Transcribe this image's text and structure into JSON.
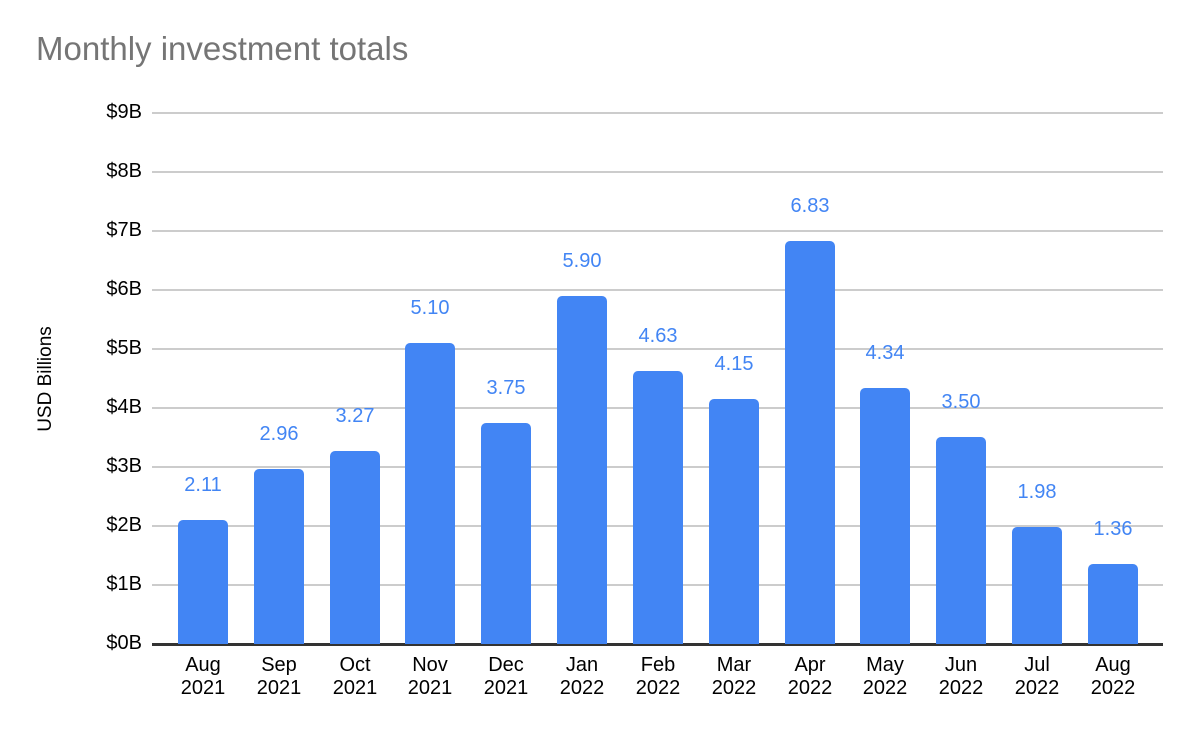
{
  "page": {
    "title": "Monthly investment totals"
  },
  "chart_data": {
    "type": "bar",
    "title": "Monthly investment totals",
    "xlabel": "",
    "ylabel": "USD Billions",
    "categories": [
      "Aug 2021",
      "Sep 2021",
      "Oct 2021",
      "Nov 2021",
      "Dec 2021",
      "Jan 2022",
      "Feb 2022",
      "Mar 2022",
      "Apr 2022",
      "May 2022",
      "Jun 2022",
      "Jul 2022",
      "Aug 2022"
    ],
    "values": [
      2.11,
      2.96,
      3.27,
      5.1,
      3.75,
      5.9,
      4.63,
      4.15,
      6.83,
      4.34,
      3.5,
      1.98,
      1.36
    ],
    "data_labels": [
      "2.11",
      "2.96",
      "3.27",
      "5.10",
      "3.75",
      "5.90",
      "4.63",
      "4.15",
      "6.83",
      "4.34",
      "3.50",
      "1.98",
      "1.36"
    ],
    "y_ticks": [
      "$0B",
      "$1B",
      "$2B",
      "$3B",
      "$4B",
      "$5B",
      "$6B",
      "$7B",
      "$8B",
      "$9B"
    ],
    "ylim": [
      0,
      9
    ],
    "grid": true,
    "legend": "none",
    "colors": {
      "bar": "#4285f4",
      "value_label": "#4285f4",
      "gridline": "#cccccc",
      "baseline": "#333333",
      "tick_text": "#000000",
      "title_text": "#757575"
    }
  }
}
